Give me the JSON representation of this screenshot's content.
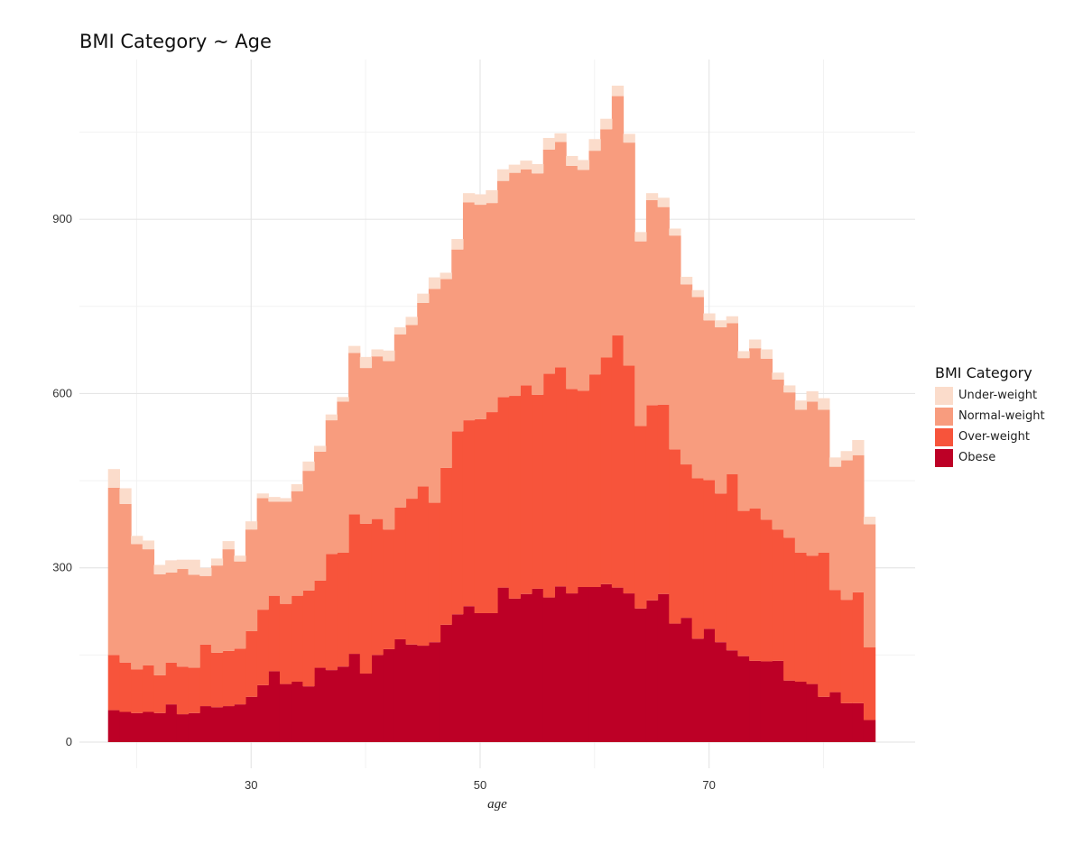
{
  "title": "BMI Category ~ Age",
  "chart_data": {
    "type": "bar",
    "stacked": true,
    "title": "BMI Category ~ Age",
    "xlabel": "age",
    "ylabel": "",
    "x": [
      18,
      19,
      20,
      21,
      22,
      23,
      24,
      25,
      26,
      27,
      28,
      29,
      30,
      31,
      32,
      33,
      34,
      35,
      36,
      37,
      38,
      39,
      40,
      41,
      42,
      43,
      44,
      45,
      46,
      47,
      48,
      49,
      50,
      51,
      52,
      53,
      54,
      55,
      56,
      57,
      58,
      59,
      60,
      61,
      62,
      63,
      64,
      65,
      66,
      67,
      68,
      69,
      70,
      71,
      72,
      73,
      74,
      75,
      76,
      77,
      78,
      79,
      80,
      81,
      82,
      83,
      84
    ],
    "xticks": [
      30,
      50,
      70
    ],
    "yticks": [
      0,
      300,
      600,
      900
    ],
    "xlim": [
      15,
      88
    ],
    "ylim": [
      -45,
      1175
    ],
    "grid": true,
    "legend_title": "BMI Category",
    "legend_position": "right",
    "series": [
      {
        "name": "Obese",
        "color": "#bd0026",
        "values": [
          55,
          52,
          50,
          52,
          50,
          65,
          48,
          50,
          62,
          60,
          62,
          65,
          78,
          98,
          122,
          100,
          104,
          96,
          128,
          124,
          130,
          152,
          118,
          150,
          160,
          177,
          168,
          166,
          172,
          202,
          220,
          234,
          222,
          222,
          266,
          247,
          255,
          264,
          249,
          268,
          256,
          267,
          267,
          272,
          266,
          256,
          230,
          244,
          255,
          204,
          214,
          178,
          195,
          172,
          158,
          148,
          140,
          139,
          140,
          106,
          104,
          100,
          78,
          86,
          67,
          67,
          38
        ]
      },
      {
        "name": "Over-weight",
        "color": "#f7543b",
        "values": [
          95,
          85,
          75,
          80,
          65,
          72,
          82,
          78,
          106,
          94,
          95,
          96,
          113,
          130,
          130,
          138,
          148,
          165,
          150,
          200,
          196,
          240,
          258,
          234,
          206,
          227,
          251,
          274,
          240,
          270,
          315,
          320,
          334,
          346,
          328,
          349,
          359,
          334,
          385,
          377,
          352,
          338,
          366,
          390,
          434,
          392,
          314,
          336,
          326,
          300,
          264,
          276,
          256,
          256,
          303,
          250,
          262,
          244,
          226,
          246,
          222,
          221,
          248,
          176,
          178,
          191,
          125
        ]
      },
      {
        "name": "Normal-weight",
        "color": "#f89c7e",
        "values": [
          288,
          273,
          216,
          200,
          174,
          155,
          168,
          160,
          118,
          150,
          175,
          150,
          175,
          192,
          162,
          176,
          180,
          206,
          222,
          230,
          260,
          278,
          268,
          280,
          290,
          298,
          299,
          316,
          368,
          325,
          313,
          375,
          369,
          360,
          372,
          384,
          372,
          381,
          386,
          388,
          384,
          380,
          385,
          393,
          412,
          384,
          318,
          353,
          340,
          368,
          310,
          312,
          275,
          286,
          260,
          263,
          276,
          277,
          258,
          250,
          246,
          265,
          246,
          212,
          240,
          236,
          212
        ]
      },
      {
        "name": "Under-weight",
        "color": "#fbdccb",
        "values": [
          32,
          27,
          14,
          15,
          16,
          21,
          16,
          26,
          14,
          12,
          14,
          10,
          14,
          8,
          8,
          6,
          12,
          16,
          10,
          10,
          8,
          12,
          19,
          12,
          18,
          12,
          14,
          16,
          20,
          11,
          18,
          16,
          18,
          22,
          20,
          14,
          15,
          16,
          20,
          15,
          17,
          17,
          20,
          18,
          18,
          15,
          16,
          12,
          16,
          12,
          13,
          12,
          12,
          12,
          12,
          12,
          15,
          16,
          12,
          12,
          16,
          18,
          20,
          16,
          16,
          26,
          13
        ]
      }
    ]
  }
}
